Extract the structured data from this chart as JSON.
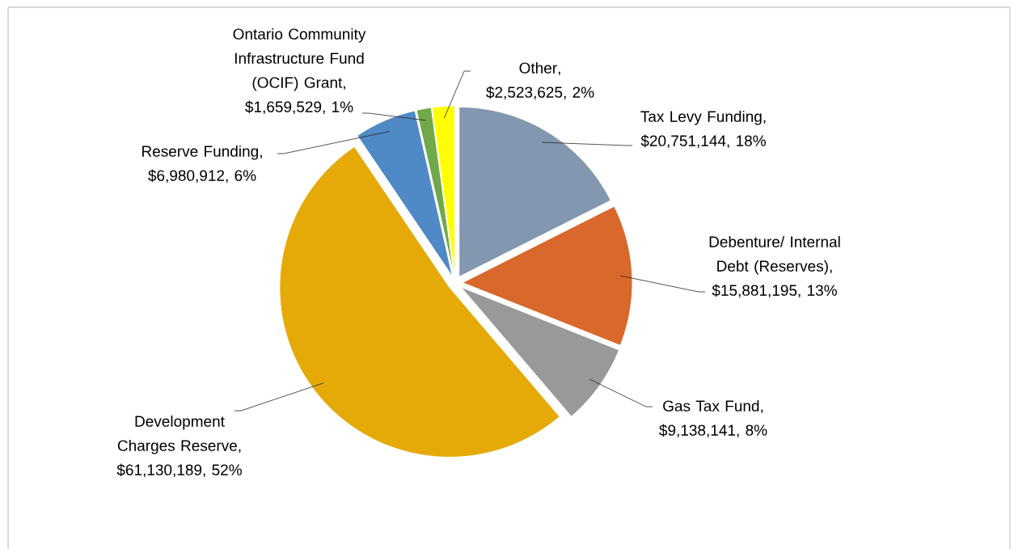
{
  "chart_data": {
    "type": "pie",
    "categories": [
      "Tax Levy Funding",
      "Debenture/ Internal Debt (Reserves)",
      "Gas Tax Fund",
      "Development Charges  Reserve",
      "Reserve Funding",
      "Ontario Community Infrastructure Fund (OCIF) Grant",
      "Other"
    ],
    "values": [
      20751144,
      15881195,
      9138141,
      61130189,
      6980912,
      1659529,
      2523625
    ],
    "value_labels": [
      ", $20,751,144, 18%",
      ", $15,881,195, 13%",
      ", $9,138,141, 8%",
      ", $61,130,189, 52%",
      ", $6,980,912, 6%",
      ", $1,659,529, 1%",
      ", $2,523,625, 2%"
    ],
    "colors": [
      "#8497b0",
      "#d9682c",
      "#999999",
      "#e6aa08",
      "#4f89c6",
      "#70a84a",
      "#ffff00"
    ]
  }
}
